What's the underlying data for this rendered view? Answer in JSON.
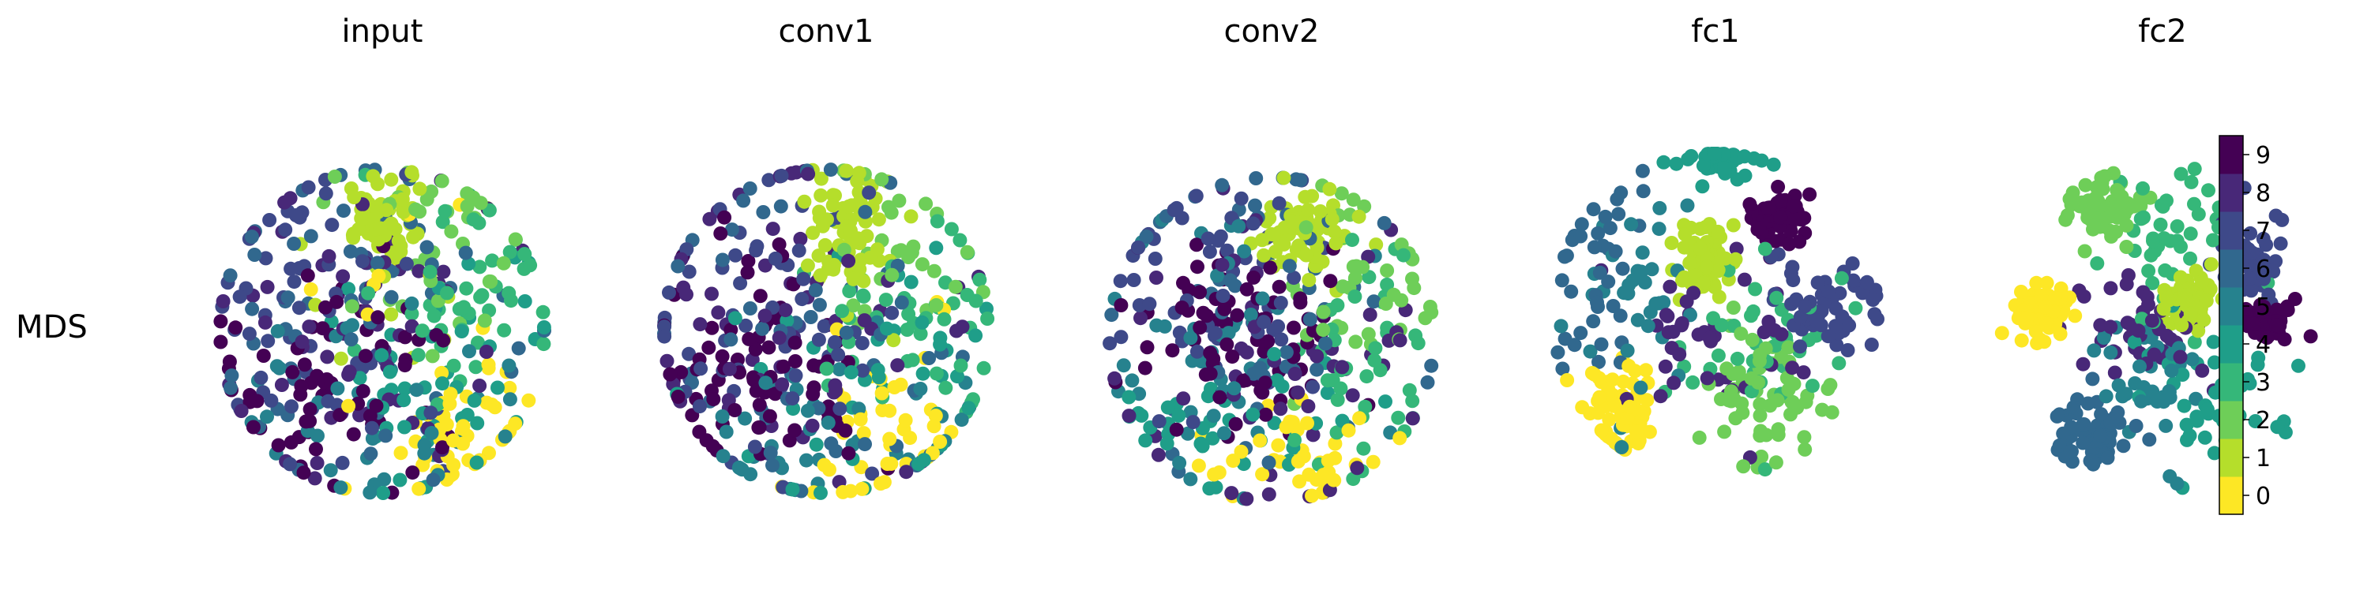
{
  "row_label": "MDS",
  "chart_data": {
    "type": "scatter",
    "colormap": "viridis_r",
    "legend": "colorbar-right",
    "grid": false,
    "axes_visible": false,
    "colorbar": {
      "ticks": [
        "0",
        "1",
        "2",
        "3",
        "4",
        "5",
        "6",
        "7",
        "8",
        "9"
      ],
      "colors": [
        "#fde725",
        "#b5de2b",
        "#6ece58",
        "#35b779",
        "#1f9e89",
        "#26828e",
        "#31688e",
        "#3e4989",
        "#482878",
        "#440154"
      ]
    },
    "panels": [
      {
        "title": "input",
        "clusters": [
          {
            "label": 0,
            "cx": 0.8,
            "cy": -1.0,
            "sx": 0.35,
            "sy": 0.45,
            "n": 45
          },
          {
            "label": 0,
            "cx": 0.4,
            "cy": 0.0,
            "sx": 0.9,
            "sy": 0.9,
            "n": 12
          },
          {
            "label": 1,
            "cx": 0.0,
            "cy": 1.15,
            "sx": 0.18,
            "sy": 0.25,
            "n": 70
          },
          {
            "label": 1,
            "cx": 0.1,
            "cy": 0.5,
            "sx": 0.8,
            "sy": 0.6,
            "n": 10
          },
          {
            "label": 2,
            "cx": 0.5,
            "cy": 0.9,
            "sx": 0.5,
            "sy": 0.5,
            "n": 35
          },
          {
            "label": 3,
            "cx": 0.7,
            "cy": 0.3,
            "sx": 0.5,
            "sy": 0.6,
            "n": 50
          },
          {
            "label": 4,
            "cx": 0.6,
            "cy": -0.4,
            "sx": 0.6,
            "sy": 0.7,
            "n": 45
          },
          {
            "label": 5,
            "cx": 0.1,
            "cy": -0.8,
            "sx": 0.7,
            "sy": 0.6,
            "n": 40
          },
          {
            "label": 6,
            "cx": -0.3,
            "cy": 0.1,
            "sx": 0.8,
            "sy": 0.9,
            "n": 55
          },
          {
            "label": 7,
            "cx": -0.7,
            "cy": 0.2,
            "sx": 0.6,
            "sy": 0.8,
            "n": 60
          },
          {
            "label": 8,
            "cx": -0.3,
            "cy": 0.3,
            "sx": 0.7,
            "sy": 0.8,
            "n": 60
          },
          {
            "label": 9,
            "cx": -0.5,
            "cy": -0.4,
            "sx": 0.6,
            "sy": 0.6,
            "n": 70
          }
        ]
      },
      {
        "title": "conv1",
        "clusters": [
          {
            "label": 0,
            "cx": 0.6,
            "cy": -1.0,
            "sx": 0.4,
            "sy": 0.45,
            "n": 45
          },
          {
            "label": 1,
            "cx": 0.2,
            "cy": 1.0,
            "sx": 0.2,
            "sy": 0.35,
            "n": 75
          },
          {
            "label": 2,
            "cx": 0.8,
            "cy": 0.9,
            "sx": 0.5,
            "sy": 0.5,
            "n": 30
          },
          {
            "label": 3,
            "cx": 0.8,
            "cy": 0.2,
            "sx": 0.5,
            "sy": 0.6,
            "n": 45
          },
          {
            "label": 4,
            "cx": 0.6,
            "cy": -0.3,
            "sx": 0.7,
            "sy": 0.7,
            "n": 40
          },
          {
            "label": 5,
            "cx": 0.0,
            "cy": -0.9,
            "sx": 0.8,
            "sy": 0.5,
            "n": 40
          },
          {
            "label": 6,
            "cx": -0.2,
            "cy": 0.0,
            "sx": 0.9,
            "sy": 0.9,
            "n": 55
          },
          {
            "label": 7,
            "cx": -0.6,
            "cy": 0.3,
            "sx": 0.6,
            "sy": 0.8,
            "n": 60
          },
          {
            "label": 8,
            "cx": -0.3,
            "cy": 0.2,
            "sx": 0.8,
            "sy": 0.9,
            "n": 60
          },
          {
            "label": 9,
            "cx": -0.7,
            "cy": -0.3,
            "sx": 0.5,
            "sy": 0.5,
            "n": 75
          }
        ]
      },
      {
        "title": "conv2",
        "clusters": [
          {
            "label": 0,
            "cx": 0.3,
            "cy": -1.1,
            "sx": 0.4,
            "sy": 0.3,
            "n": 45
          },
          {
            "label": 1,
            "cx": 0.3,
            "cy": 1.0,
            "sx": 0.25,
            "sy": 0.2,
            "n": 75
          },
          {
            "label": 2,
            "cx": 0.9,
            "cy": 0.6,
            "sx": 0.4,
            "sy": 0.5,
            "n": 40
          },
          {
            "label": 3,
            "cx": 0.9,
            "cy": -0.2,
            "sx": 0.4,
            "sy": 0.6,
            "n": 45
          },
          {
            "label": 4,
            "cx": -0.4,
            "cy": -0.8,
            "sx": 0.6,
            "sy": 0.3,
            "n": 40
          },
          {
            "label": 5,
            "cx": -0.6,
            "cy": 0.1,
            "sx": 0.5,
            "sy": 0.8,
            "n": 45
          },
          {
            "label": 6,
            "cx": 0.0,
            "cy": 0.3,
            "sx": 0.9,
            "sy": 0.9,
            "n": 50
          },
          {
            "label": 7,
            "cx": -0.5,
            "cy": 0.5,
            "sx": 0.6,
            "sy": 0.6,
            "n": 55
          },
          {
            "label": 8,
            "cx": 0.2,
            "cy": -0.3,
            "sx": 0.8,
            "sy": 0.8,
            "n": 55
          },
          {
            "label": 9,
            "cx": -0.3,
            "cy": 0.0,
            "sx": 0.45,
            "sy": 0.45,
            "n": 80
          }
        ]
      },
      {
        "title": "fc1",
        "clusters": [
          {
            "label": 0,
            "cx": -0.95,
            "cy": -0.95,
            "sx": 0.17,
            "sy": 0.22,
            "n": 80
          },
          {
            "label": 1,
            "cx": -0.05,
            "cy": 0.55,
            "sx": 0.15,
            "sy": 0.17,
            "n": 75
          },
          {
            "label": 2,
            "cx": 0.45,
            "cy": -0.85,
            "sx": 0.35,
            "sy": 0.35,
            "n": 65
          },
          {
            "label": 3,
            "cx": 0.3,
            "cy": -0.35,
            "sx": 0.4,
            "sy": 0.4,
            "n": 40
          },
          {
            "label": 4,
            "cx": 0.05,
            "cy": 1.5,
            "sx": 0.18,
            "sy": 0.13,
            "n": 45
          },
          {
            "label": 5,
            "cx": -0.8,
            "cy": 0.2,
            "sx": 0.3,
            "sy": 0.5,
            "n": 35
          },
          {
            "label": 6,
            "cx": -1.1,
            "cy": 0.4,
            "sx": 0.25,
            "sy": 0.55,
            "n": 40
          },
          {
            "label": 7,
            "cx": 1.0,
            "cy": 0.1,
            "sx": 0.3,
            "sy": 0.25,
            "n": 55
          },
          {
            "label": 8,
            "cx": -0.1,
            "cy": -0.15,
            "sx": 0.45,
            "sy": 0.4,
            "n": 45
          },
          {
            "label": 9,
            "cx": 0.6,
            "cy": 0.95,
            "sx": 0.14,
            "sy": 0.13,
            "n": 65
          }
        ]
      },
      {
        "title": "fc2",
        "clusters": [
          {
            "label": 0,
            "cx": -1.2,
            "cy": 0.15,
            "sx": 0.15,
            "sy": 0.13,
            "n": 75
          },
          {
            "label": 1,
            "cx": 0.25,
            "cy": 0.3,
            "sx": 0.14,
            "sy": 0.14,
            "n": 70
          },
          {
            "label": 2,
            "cx": -0.5,
            "cy": 1.15,
            "sx": 0.2,
            "sy": 0.18,
            "n": 65
          },
          {
            "label": 3,
            "cx": 0.1,
            "cy": 0.9,
            "sx": 0.35,
            "sy": 0.35,
            "n": 45
          },
          {
            "label": 4,
            "cx": 0.5,
            "cy": -0.7,
            "sx": 0.35,
            "sy": 0.35,
            "n": 40
          },
          {
            "label": 5,
            "cx": -0.05,
            "cy": -0.55,
            "sx": 0.3,
            "sy": 0.35,
            "n": 40
          },
          {
            "label": 6,
            "cx": -0.7,
            "cy": -1.05,
            "sx": 0.18,
            "sy": 0.18,
            "n": 65
          },
          {
            "label": 7,
            "cx": 0.9,
            "cy": 0.7,
            "sx": 0.2,
            "sy": 0.3,
            "n": 50
          },
          {
            "label": 8,
            "cx": -0.1,
            "cy": 0.15,
            "sx": 0.35,
            "sy": 0.35,
            "n": 45
          },
          {
            "label": 9,
            "cx": 1.0,
            "cy": 0.05,
            "sx": 0.16,
            "sy": 0.1,
            "n": 70
          }
        ]
      }
    ]
  }
}
